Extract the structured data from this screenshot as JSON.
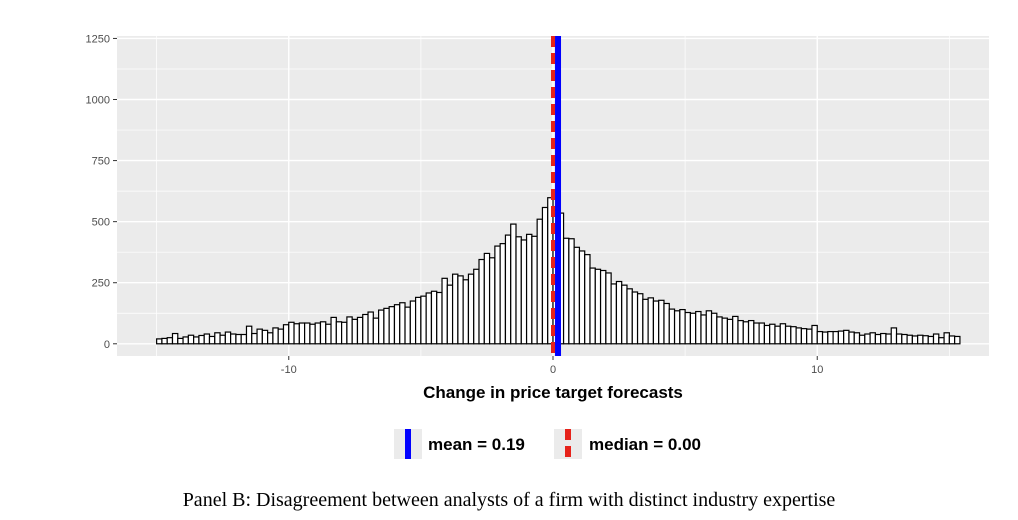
{
  "chart_data": {
    "type": "bar",
    "xlabel": "Change in price target forecasts",
    "ylabel": "",
    "xlim": [
      -16.5,
      16.5
    ],
    "ylim": [
      -50,
      1260
    ],
    "x_ticks": [
      -10,
      0,
      10
    ],
    "x_tick_labels": [
      "-10",
      "0",
      "10"
    ],
    "y_ticks": [
      0,
      250,
      500,
      750,
      1000,
      1250
    ],
    "y_tick_labels": [
      "0",
      "250",
      "500",
      "750",
      "1000",
      "1250"
    ],
    "grid": true,
    "legend_position": "bottom",
    "bin_width": 0.2,
    "bin_start": -15,
    "counts": [
      20,
      22,
      25,
      42,
      22,
      28,
      35,
      28,
      34,
      40,
      30,
      45,
      35,
      48,
      40,
      38,
      38,
      72,
      42,
      60,
      55,
      45,
      65,
      60,
      78,
      88,
      82,
      85,
      85,
      80,
      85,
      90,
      80,
      108,
      90,
      88,
      110,
      100,
      108,
      120,
      130,
      105,
      138,
      145,
      152,
      160,
      168,
      150,
      175,
      190,
      195,
      208,
      215,
      210,
      268,
      240,
      285,
      278,
      262,
      285,
      305,
      345,
      370,
      352,
      400,
      410,
      445,
      490,
      438,
      425,
      448,
      440,
      510,
      558,
      598,
      548,
      535,
      432,
      430,
      395,
      380,
      365,
      310,
      305,
      300,
      290,
      245,
      255,
      240,
      225,
      212,
      205,
      182,
      188,
      175,
      178,
      165,
      142,
      135,
      140,
      128,
      125,
      132,
      118,
      135,
      125,
      110,
      105,
      100,
      112,
      95,
      90,
      95,
      85,
      85,
      75,
      80,
      72,
      82,
      72,
      70,
      65,
      62,
      60,
      75,
      50,
      48,
      50,
      50,
      52,
      55,
      48,
      45,
      35,
      40,
      45,
      38,
      42,
      40,
      65,
      40,
      38,
      35,
      32,
      35,
      33,
      30,
      40,
      25,
      45,
      32,
      30
    ],
    "series": [
      {
        "name": "mean = 0.19",
        "value": 0.19,
        "color": "#0000ff",
        "style": "solid"
      },
      {
        "name": "median = 0.00",
        "value": 0.0,
        "color": "#e6221a",
        "style": "dashed"
      }
    ],
    "panel_background": "#ebebeb",
    "bar_fill": "#ffffff",
    "bar_stroke": "#000000"
  },
  "caption": "Panel B: Disagreement between analysts of a firm with distinct industry expertise"
}
